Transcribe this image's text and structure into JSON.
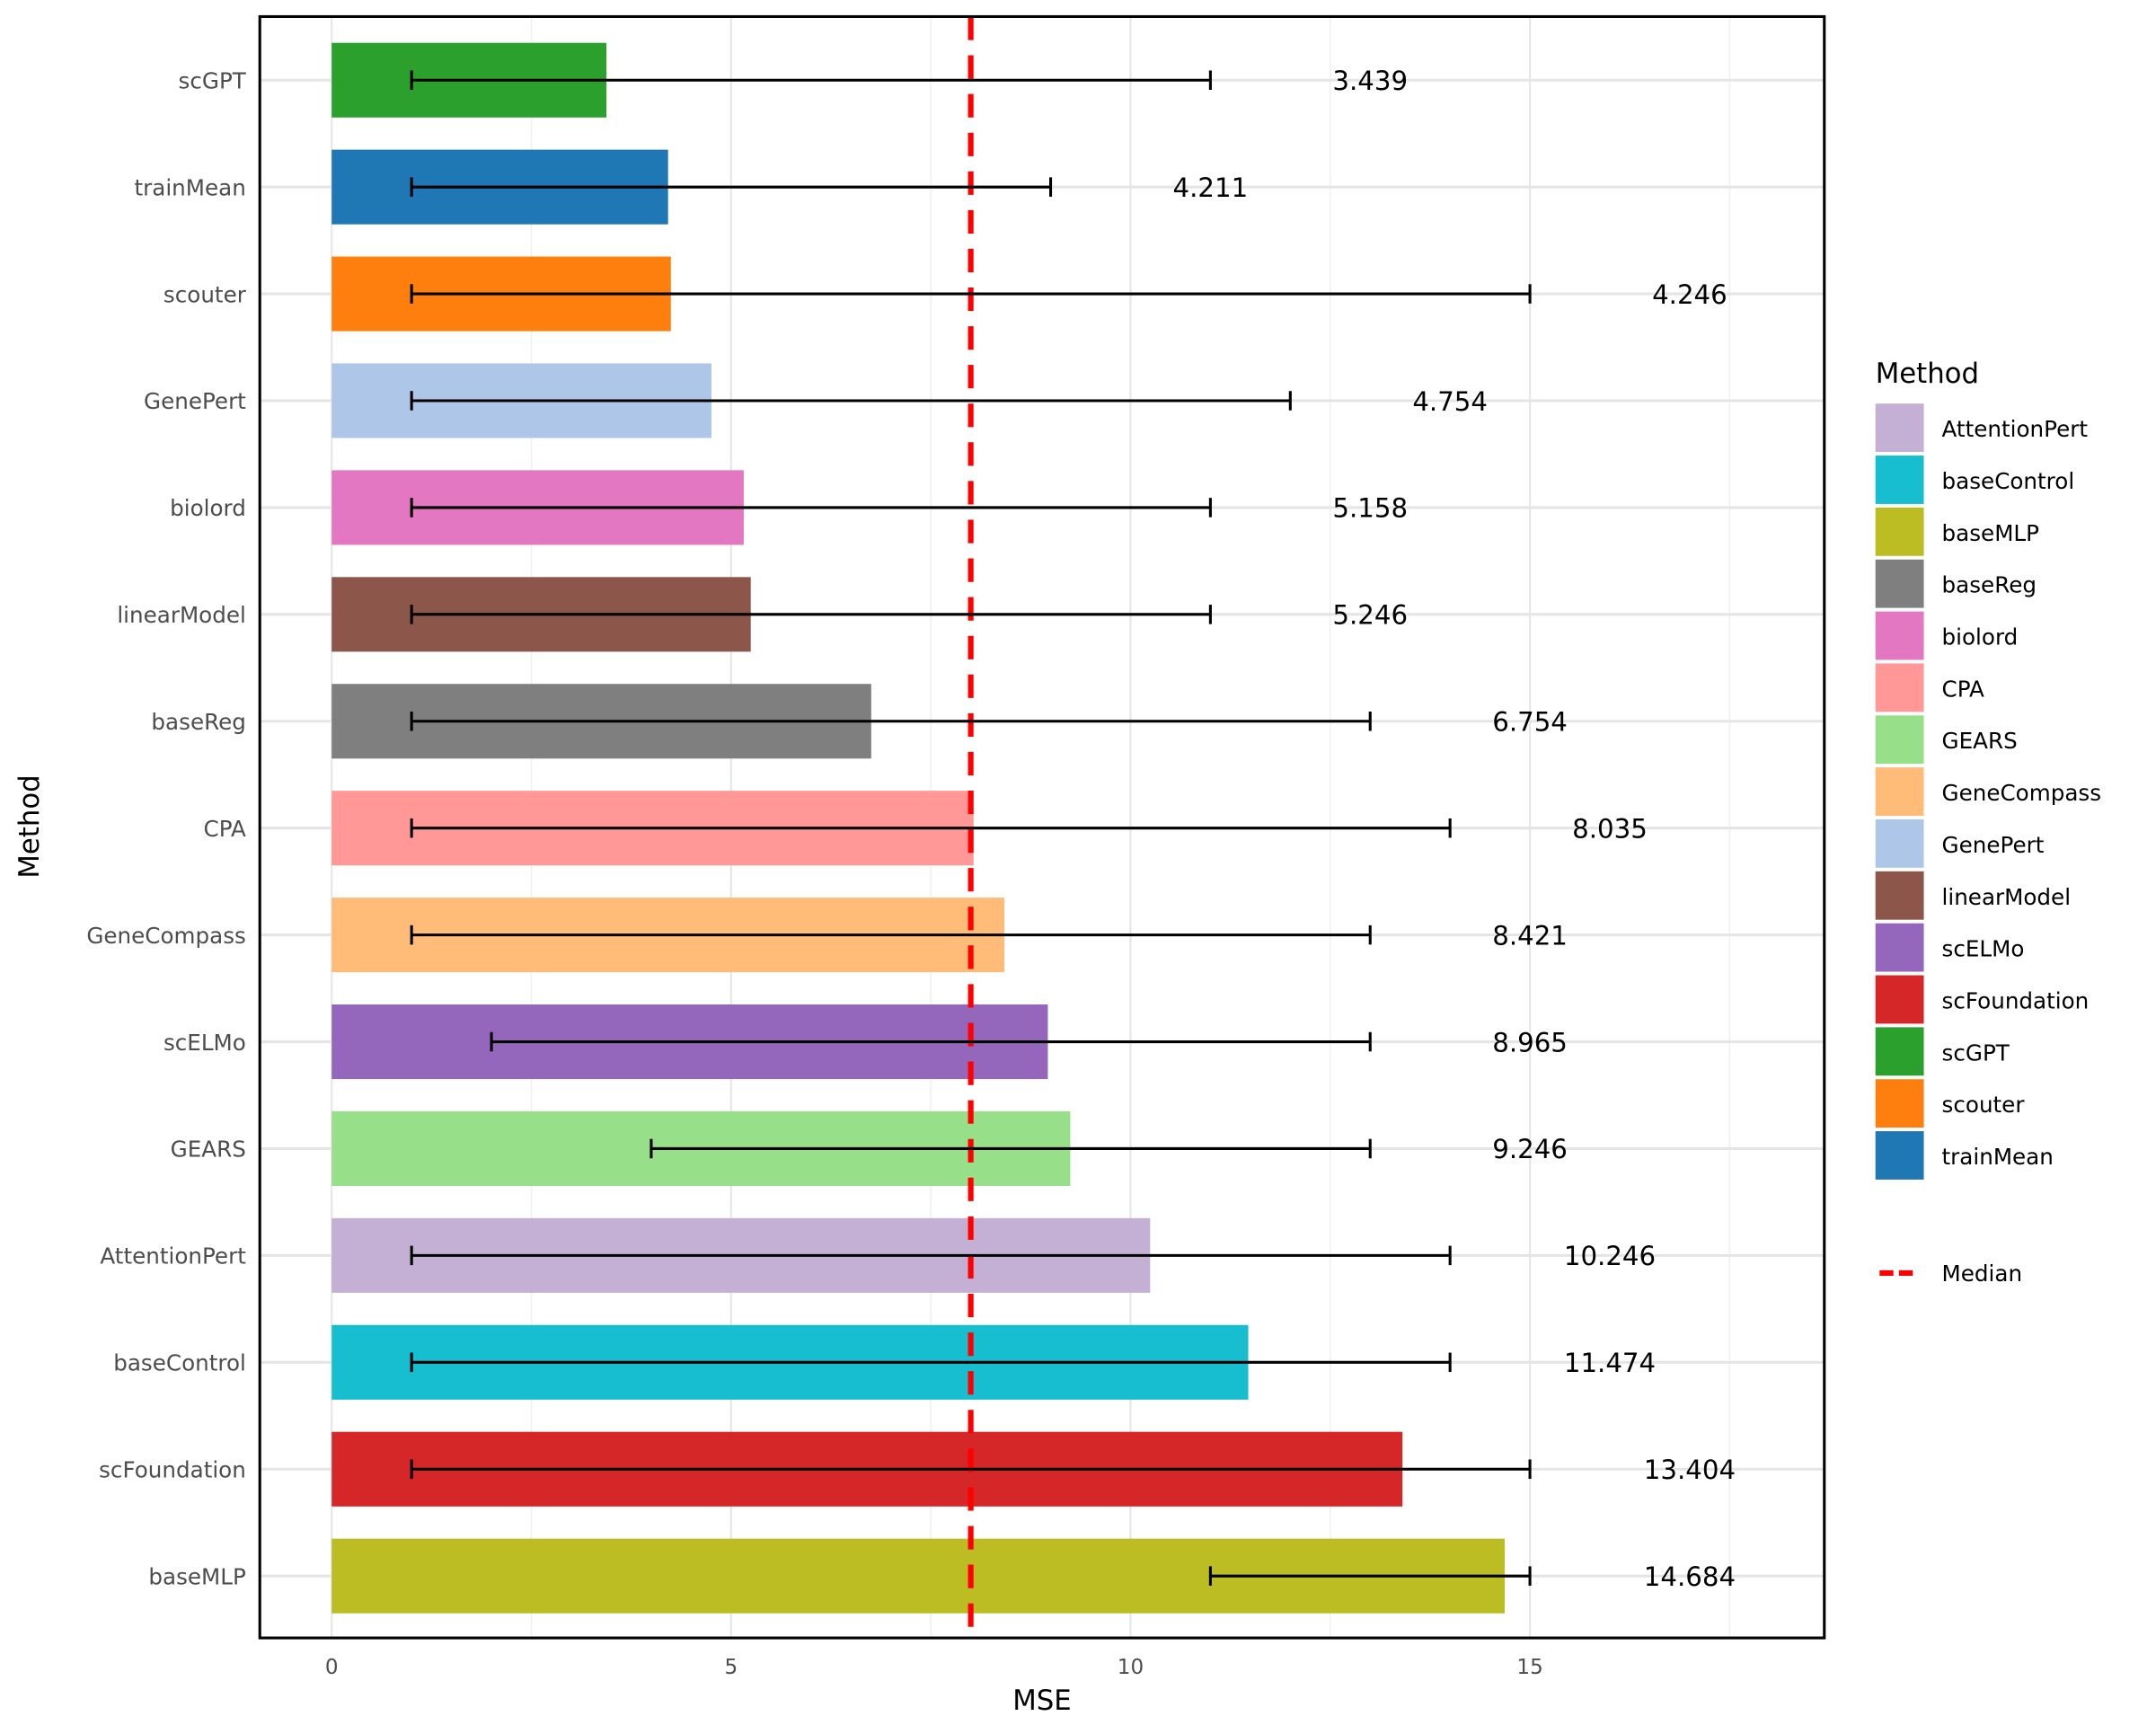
{
  "chart_data": {
    "type": "bar",
    "orientation": "horizontal",
    "xlabel": "MSE",
    "ylabel": "Method",
    "xlim": [
      -0.9,
      18.7
    ],
    "xticks": [
      0,
      5,
      10,
      15
    ],
    "grid": true,
    "categories": [
      "scGPT",
      "trainMean",
      "scouter",
      "GenePert",
      "biolord",
      "linearModel",
      "baseReg",
      "CPA",
      "GeneCompass",
      "scELMo",
      "GEARS",
      "AttentionPert",
      "baseControl",
      "scFoundation",
      "baseMLP"
    ],
    "values": [
      3.439,
      4.211,
      4.246,
      4.754,
      5.158,
      5.246,
      6.754,
      8.035,
      8.421,
      8.965,
      9.246,
      10.246,
      11.474,
      13.404,
      14.684
    ],
    "value_labels": [
      "3.439",
      "4.211",
      "4.246",
      "4.754",
      "5.158",
      "5.246",
      "6.754",
      "8.035",
      "8.421",
      "8.965",
      "9.246",
      "10.246",
      "11.474",
      "13.404",
      "14.684"
    ],
    "error_low": [
      1,
      1,
      1,
      1,
      1,
      1,
      1,
      1,
      1,
      2,
      4,
      1,
      1,
      1,
      11
    ],
    "error_high": [
      11,
      9,
      15,
      12,
      11,
      11,
      13,
      14,
      13,
      13,
      13,
      14,
      14,
      15,
      15
    ],
    "median": 8,
    "median_color": "#ff0000",
    "legend": {
      "title": "Method",
      "placement": "right",
      "entries": [
        "AttentionPert",
        "baseControl",
        "baseMLP",
        "baseReg",
        "biolord",
        "CPA",
        "GEARS",
        "GeneCompass",
        "GenePert",
        "linearModel",
        "scELMo",
        "scFoundation",
        "scGPT",
        "scouter",
        "trainMean"
      ],
      "median_label": "Median"
    },
    "colors": {
      "AttentionPert": "#c5b0d5",
      "baseControl": "#17becf",
      "baseMLP": "#bcbd22",
      "baseReg": "#7f7f7f",
      "biolord": "#e377c2",
      "CPA": "#ff9896",
      "GEARS": "#98df8a",
      "GeneCompass": "#ffbb78",
      "GenePert": "#aec7e8",
      "linearModel": "#8c564b",
      "scELMo": "#9467bd",
      "scFoundation": "#d62728",
      "scGPT": "#2ca02c",
      "scouter": "#ff7f0e",
      "trainMean": "#1f77b4"
    }
  }
}
